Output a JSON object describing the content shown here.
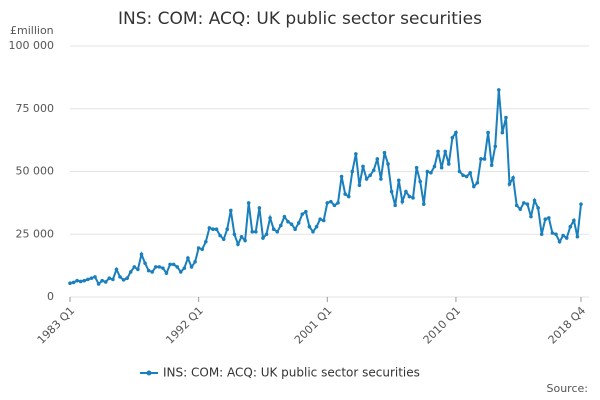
{
  "chart_data": {
    "type": "line",
    "title": "INS: COM: ACQ: UK public sector securities",
    "y_label": "£million",
    "source": "Source:",
    "grid": true,
    "categories": [
      "1983 Q1",
      null,
      null,
      null,
      null,
      null,
      null,
      null,
      null,
      null,
      null,
      null,
      null,
      null,
      null,
      null,
      null,
      null,
      null,
      null,
      null,
      null,
      null,
      null,
      null,
      null,
      null,
      null,
      null,
      null,
      null,
      null,
      null,
      null,
      null,
      null,
      "1992 Q1",
      null,
      null,
      null,
      null,
      null,
      null,
      null,
      null,
      null,
      null,
      null,
      null,
      null,
      null,
      null,
      null,
      null,
      null,
      null,
      null,
      null,
      null,
      null,
      null,
      null,
      null,
      null,
      null,
      null,
      null,
      null,
      null,
      null,
      null,
      null,
      "2001 Q1",
      null,
      null,
      null,
      null,
      null,
      null,
      null,
      null,
      null,
      null,
      null,
      null,
      null,
      null,
      null,
      null,
      null,
      null,
      null,
      null,
      null,
      null,
      null,
      null,
      null,
      null,
      null,
      null,
      null,
      null,
      null,
      null,
      null,
      null,
      null,
      "2010 Q1",
      null,
      null,
      null,
      null,
      null,
      null,
      null,
      null,
      null,
      null,
      null,
      null,
      null,
      null,
      null,
      null,
      null,
      null,
      null,
      null,
      null,
      null,
      null,
      null,
      null,
      null,
      null,
      null,
      null,
      null,
      null,
      null,
      null,
      null,
      "2018 Q4"
    ],
    "series": [
      {
        "name": "INS: COM: ACQ: UK public sector securities",
        "color": "#1a7fbd",
        "values": [
          5500,
          5800,
          6500,
          6200,
          6500,
          7000,
          7500,
          8000,
          5200,
          6500,
          6000,
          7500,
          7000,
          11000,
          8000,
          6800,
          7500,
          10000,
          12000,
          11000,
          17000,
          13500,
          10500,
          10000,
          12000,
          12000,
          11500,
          9500,
          13000,
          13000,
          12000,
          10000,
          11500,
          15500,
          12000,
          14000,
          19500,
          19000,
          22000,
          27500,
          27000,
          27000,
          24500,
          23000,
          27000,
          34500,
          25000,
          21000,
          24000,
          22500,
          37500,
          26000,
          26000,
          35500,
          23500,
          25000,
          31500,
          27000,
          26000,
          28500,
          32000,
          30000,
          29000,
          27000,
          29500,
          33000,
          34000,
          28000,
          26000,
          28000,
          31000,
          30500,
          37500,
          38000,
          36500,
          37500,
          48000,
          41000,
          40000,
          50000,
          57000,
          44500,
          52000,
          47000,
          48500,
          50500,
          55000,
          47000,
          57500,
          53000,
          42000,
          36500,
          46500,
          38000,
          42000,
          40000,
          39500,
          51500,
          46000,
          37000,
          50000,
          49500,
          52000,
          58000,
          51500,
          58000,
          53000,
          63500,
          65500,
          50000,
          48500,
          48000,
          49500,
          44000,
          45500,
          55000,
          55000,
          65500,
          52500,
          60000,
          82500,
          65500,
          71500,
          45000,
          47500,
          36500,
          35000,
          37500,
          37000,
          32000,
          38500,
          35500,
          25000,
          31000,
          31500,
          25500,
          25000,
          22000,
          24500,
          23500,
          28000,
          30500,
          24000,
          37000
        ]
      }
    ],
    "ylim": [
      0,
      100000
    ],
    "yticks": [
      0,
      {
        "value": 25000,
        "label": "25 000"
      },
      {
        "value": 50000,
        "label": "50 000"
      },
      {
        "value": 75000,
        "label": "75 000"
      },
      {
        "value": 100000,
        "label": "100 000"
      }
    ]
  }
}
